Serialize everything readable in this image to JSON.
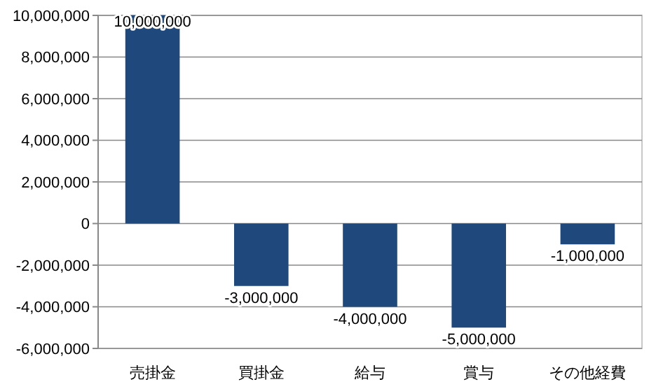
{
  "chart_data": {
    "type": "bar",
    "categories": [
      "売掛金",
      "買掛金",
      "給与",
      "賞与",
      "その他経費"
    ],
    "values": [
      10000000,
      -3000000,
      -4000000,
      -5000000,
      -1000000
    ],
    "color": "#1f497d",
    "ylim": [
      -6000000,
      10000000
    ],
    "yticks": [
      {
        "value": -6000000,
        "label": "-6,000,000"
      },
      {
        "value": -4000000,
        "label": "-4,000,000"
      },
      {
        "value": -2000000,
        "label": "-2,000,000"
      },
      {
        "value": 0,
        "label": "0"
      },
      {
        "value": 2000000,
        "label": "2,000,000"
      },
      {
        "value": 4000000,
        "label": "4,000,000"
      },
      {
        "value": 6000000,
        "label": "6,000,000"
      },
      {
        "value": 8000000,
        "label": "8,000,000"
      },
      {
        "value": 10000000,
        "label": "10,000,000"
      }
    ],
    "value_labels": [
      "10,000,000",
      "-3,000,000",
      "-4,000,000",
      "-5,000,000",
      "-1,000,000"
    ],
    "grid": "y"
  }
}
